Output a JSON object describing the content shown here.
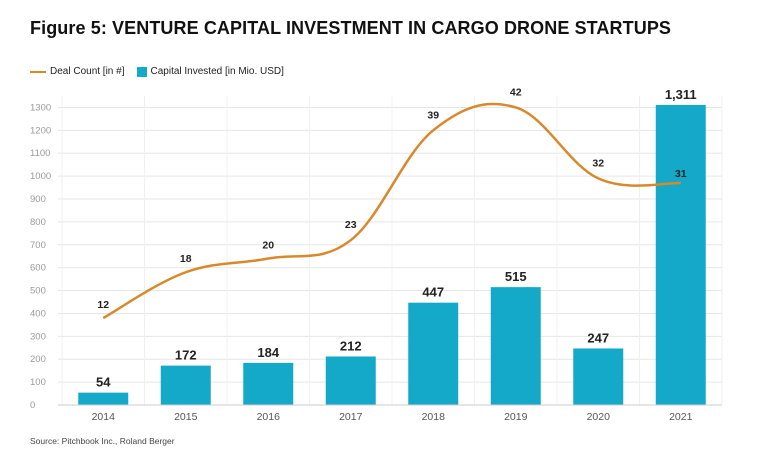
{
  "page": {
    "title": "Figure 5: VENTURE CAPITAL INVESTMENT IN CARGO DRONE STARTUPS",
    "source": "Source: Pitchbook Inc., Roland Berger"
  },
  "legend": {
    "line": "Deal Count [in #]",
    "bar": "Capital Invested [in Mio. USD]"
  },
  "colors": {
    "bar": "#15a9c9",
    "line": "#d9892b",
    "grid": "#e6e6e6"
  },
  "chart_data": {
    "type": "bar",
    "title": "Figure 5: VENTURE CAPITAL INVESTMENT IN CARGO DRONE STARTUPS",
    "categories": [
      "2014",
      "2015",
      "2016",
      "2017",
      "2018",
      "2019",
      "2020",
      "2021"
    ],
    "yticks": [
      "0",
      "100",
      "200",
      "300",
      "400",
      "500",
      "600",
      "700",
      "800",
      "900",
      "1000",
      "1100",
      "1200",
      "1300"
    ],
    "ylim": [
      0,
      1350
    ],
    "legend_position": "top-left",
    "series": [
      {
        "name": "Capital Invested [in Mio. USD]",
        "type": "bar",
        "values": [
          54,
          172,
          184,
          212,
          447,
          515,
          247,
          1311
        ],
        "labels": [
          "54",
          "172",
          "184",
          "212",
          "447",
          "515",
          "247",
          "1,311"
        ]
      },
      {
        "name": "Deal Count [in #]",
        "type": "line",
        "values": [
          12,
          18,
          20,
          23,
          39,
          42,
          32,
          31
        ],
        "plotted_at": [
          380,
          580,
          640,
          720,
          1200,
          1300,
          990,
          970
        ],
        "labels": [
          "12",
          "18",
          "20",
          "23",
          "39",
          "42",
          "32",
          "31"
        ]
      }
    ]
  }
}
